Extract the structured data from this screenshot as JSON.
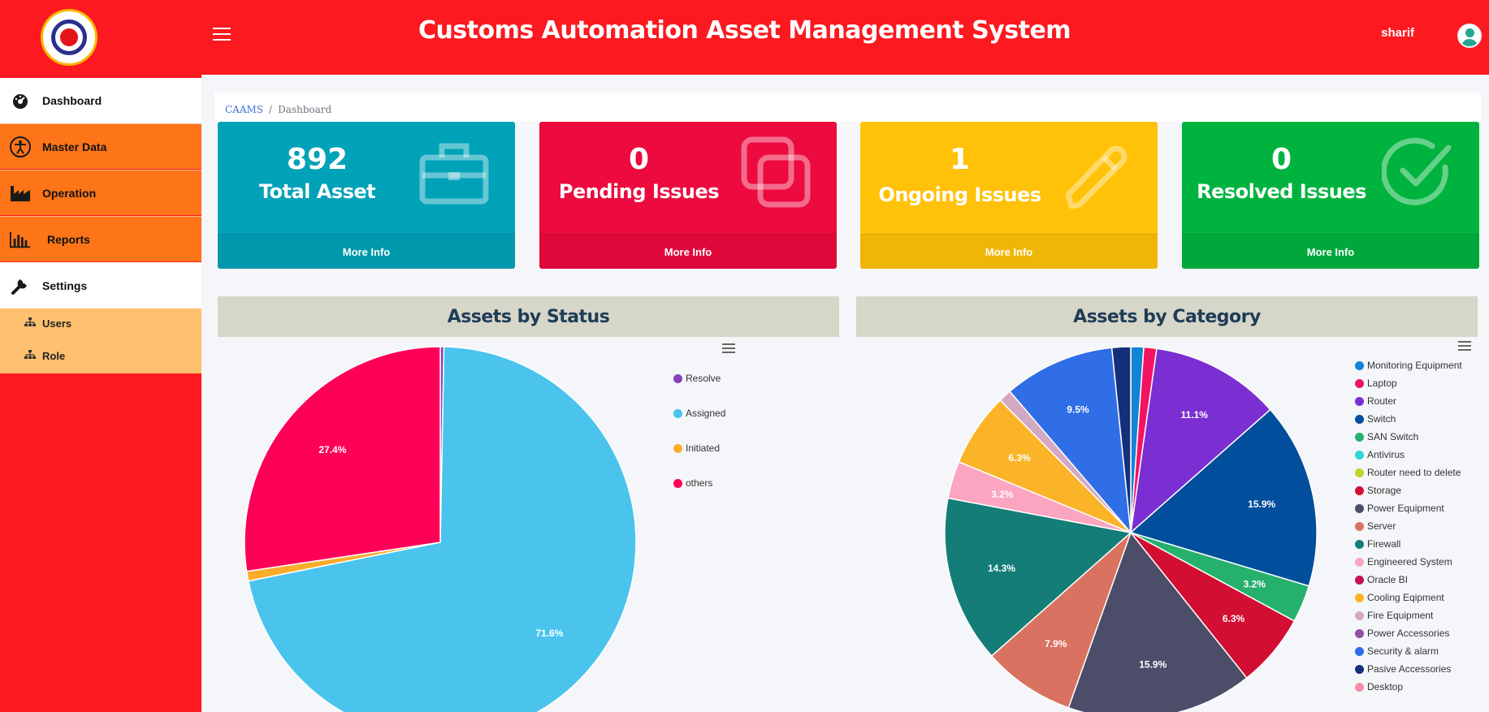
{
  "header": {
    "title": "Customs Automation Asset Management System",
    "username": "sharif",
    "accent_color": "#fc1920"
  },
  "sidebar": {
    "items": [
      {
        "label": "Dashboard",
        "icon": "tachometer-icon"
      },
      {
        "label": "Master Data",
        "icon": "universal-access-icon"
      },
      {
        "label": "Operation",
        "icon": "industry-icon"
      },
      {
        "label": "Reports",
        "icon": "bar-chart-icon"
      },
      {
        "label": "Settings",
        "icon": "wrench-icon"
      }
    ],
    "sub_items": [
      {
        "label": "Users",
        "icon": "sitemap-icon"
      },
      {
        "label": "Role",
        "icon": "sitemap-icon"
      }
    ]
  },
  "breadcrumb": {
    "root": "CAAMS",
    "current": "Dashboard"
  },
  "cards": [
    {
      "value": "892",
      "label": "Total Asset",
      "footer": "More Info",
      "icon": "briefcase-icon",
      "color": "#00a2b8"
    },
    {
      "value": "0",
      "label": "Pending Issues",
      "footer": "More Info",
      "icon": "clone-icon",
      "color": "#ec0a3e"
    },
    {
      "value": "1",
      "label": "Ongoing Issues",
      "footer": "More Info",
      "icon": "pencil-icon",
      "color": "#ffc208"
    },
    {
      "value": "0",
      "label": "Resolved Issues",
      "footer": "More Info",
      "icon": "check-circle-icon",
      "color": "#00b33f"
    }
  ],
  "chart_data": [
    {
      "type": "pie",
      "title": "Assets by Status",
      "series": [
        {
          "values": [
            0.3,
            71.6,
            0.8,
            27.4
          ]
        }
      ],
      "categories": [
        "Resolve",
        "Assigned",
        "Initiated",
        "others"
      ],
      "colors": [
        "#8b3fbf",
        "#4ac4ec",
        "#fbac2b",
        "#fd0057"
      ],
      "data_labels": [
        "",
        "71.6%",
        "",
        "27.4%"
      ],
      "legend_position": "right"
    },
    {
      "type": "pie",
      "title": "Assets by Category",
      "series": [
        {
          "values": [
            1.1,
            1.1,
            11.1,
            15.9,
            3.2,
            0,
            0,
            6.3,
            15.9,
            7.9,
            14.3,
            3.2,
            0,
            6.3,
            1.1,
            0,
            9.5,
            1.6,
            0
          ]
        }
      ],
      "categories": [
        "Monitoring Equipment",
        "Laptop",
        "Router",
        "Switch",
        "SAN Switch",
        "Antivirus",
        "Router need to delete",
        "Storage",
        "Power Equipment",
        "Server",
        "Firewall",
        "Engineered System",
        "Oracle BI",
        "Cooling Eqipment",
        "Fire Equipment",
        "Power Accessories",
        "Security & alarm",
        "Pasive Accessories",
        "Desktop"
      ],
      "colors": [
        "#1184d6",
        "#f31362",
        "#7b2fd2",
        "#004e9c",
        "#25b06e",
        "#2ed7d3",
        "#c3d12c",
        "#d20f32",
        "#4b4d69",
        "#d97260",
        "#147d77",
        "#fba5c0",
        "#c41155",
        "#fbb328",
        "#d3a8c3",
        "#9350a6",
        "#2f6ee6",
        "#14307a",
        "#fb8ca4"
      ],
      "data_labels": [
        "",
        "",
        "11.1%",
        "15.9%",
        "3.2%",
        "",
        "",
        "6.3%",
        "15.9%",
        "7.9%",
        "14.3%",
        "3.2%",
        "",
        "6.3%",
        "",
        "",
        "9.5%",
        "",
        ""
      ],
      "legend_position": "right"
    }
  ]
}
